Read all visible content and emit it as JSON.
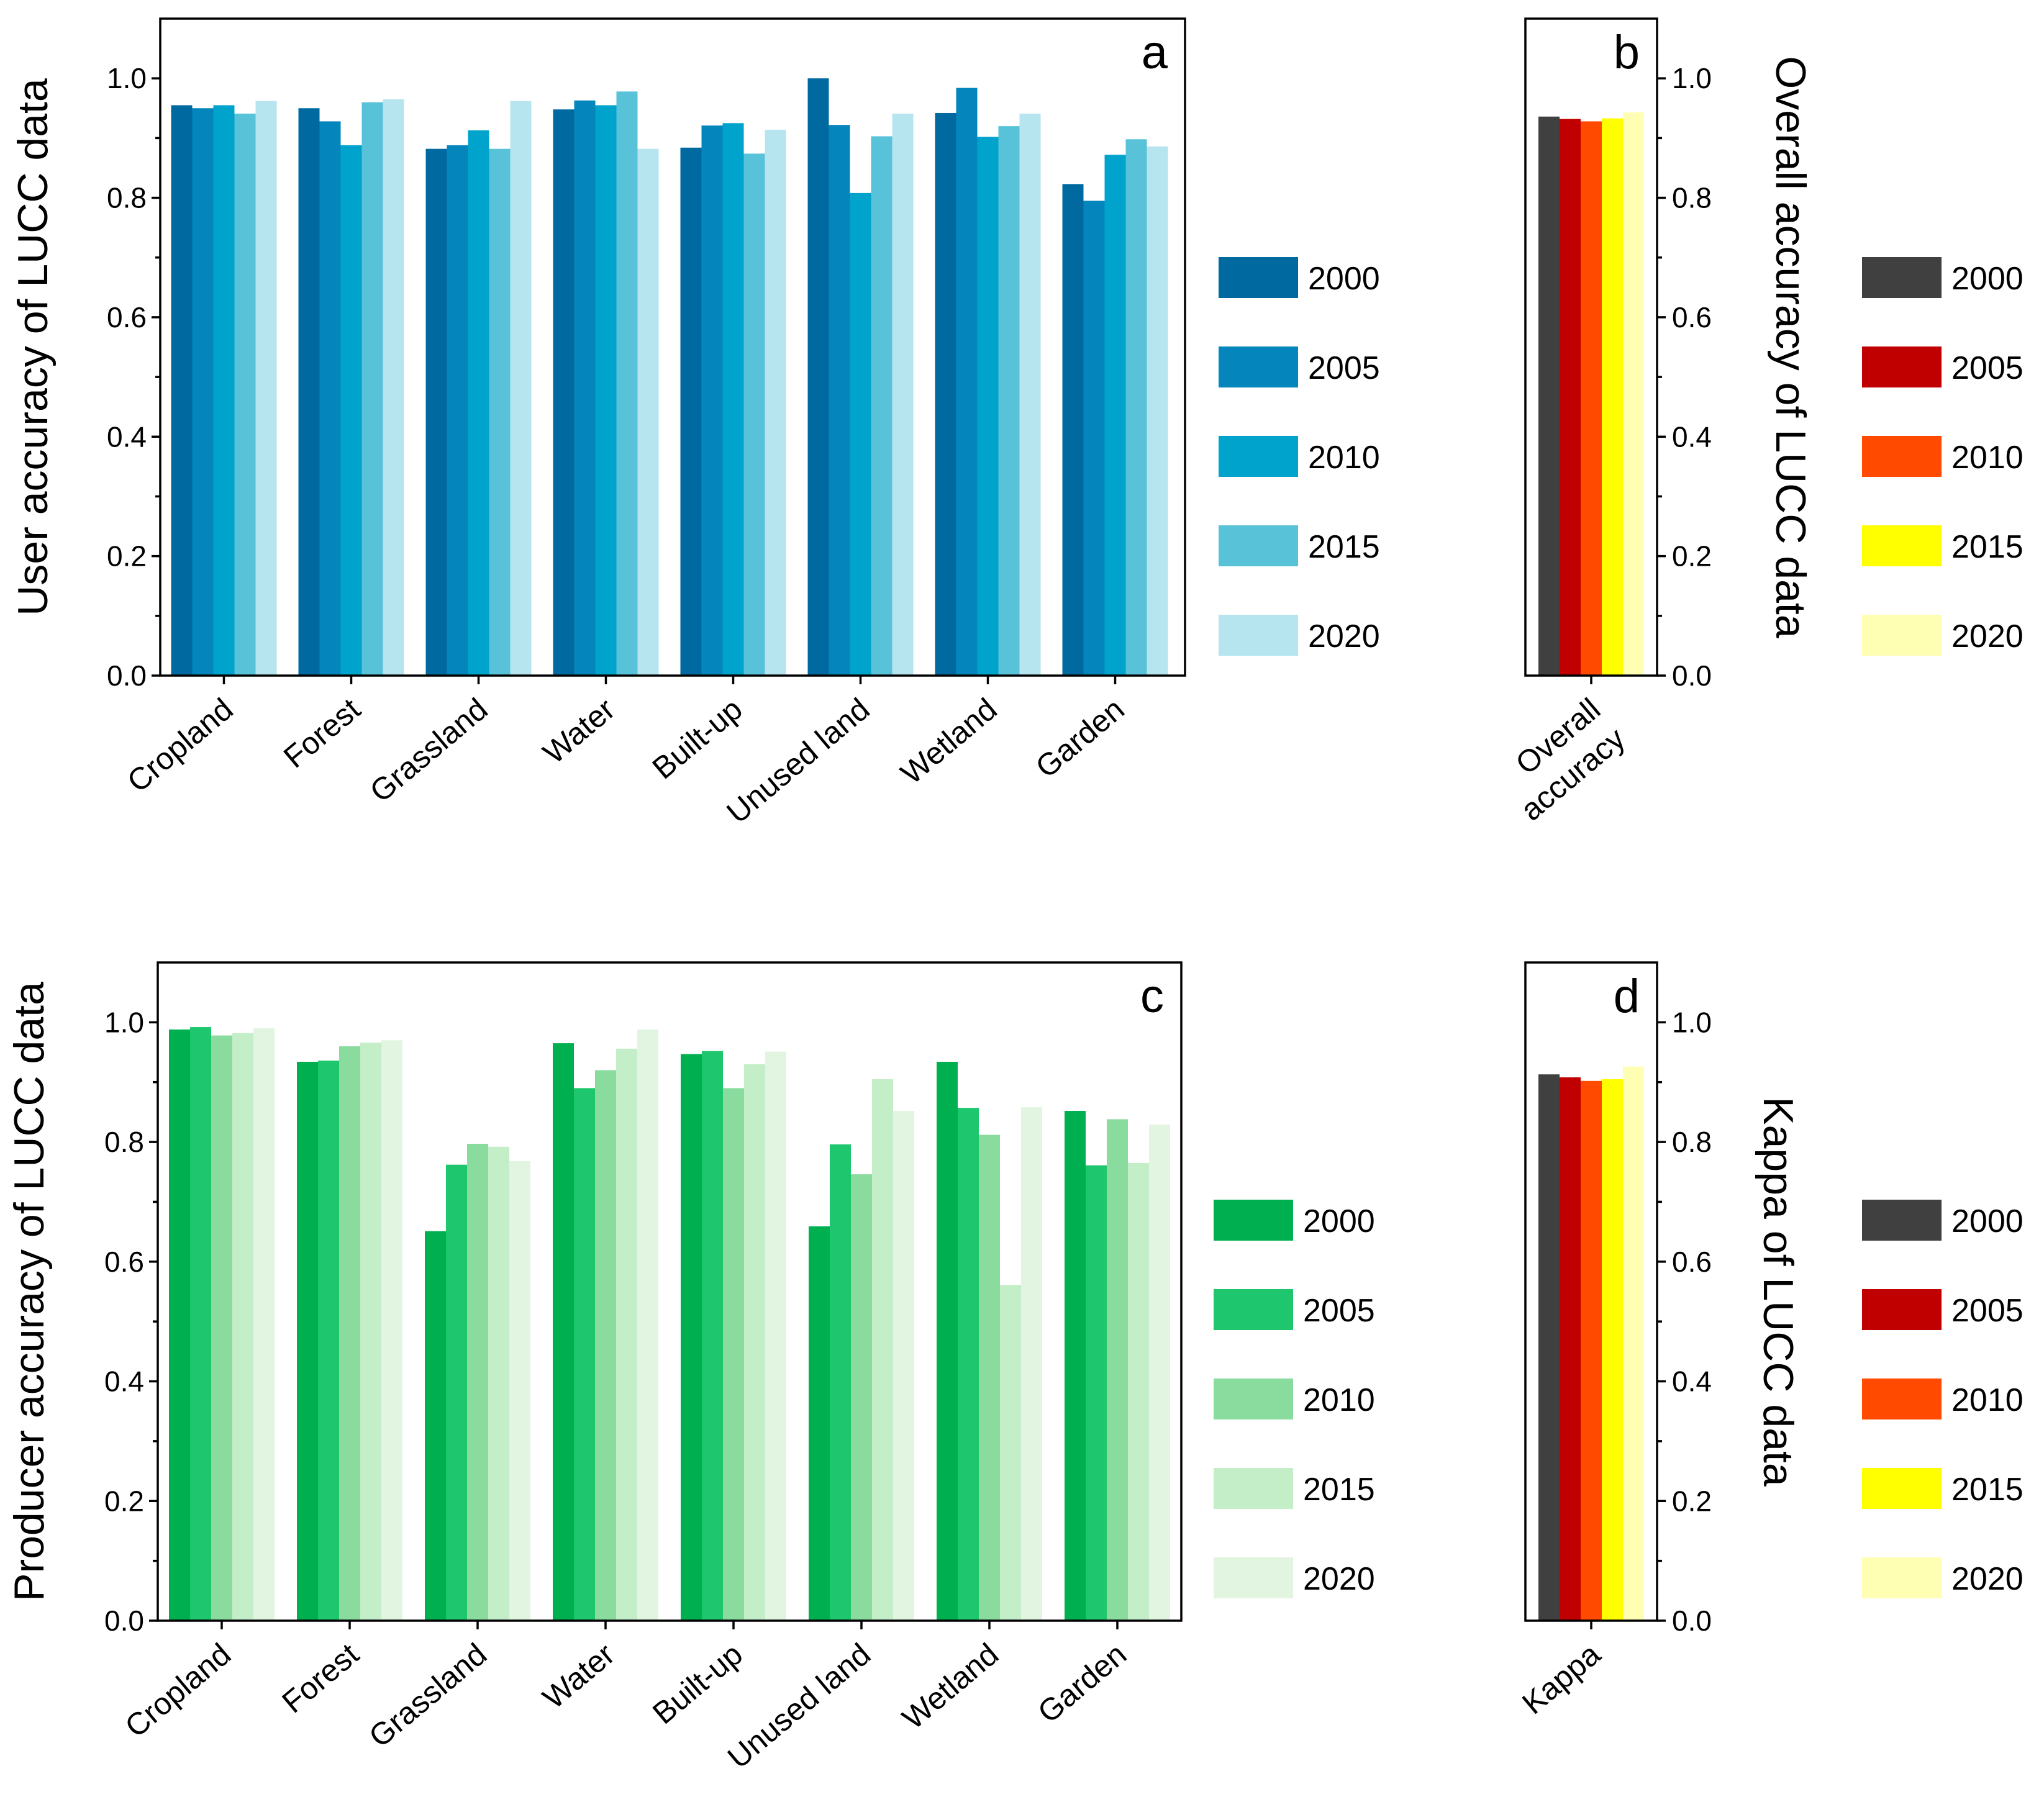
{
  "chart_data": [
    {
      "id": "a",
      "type": "bar",
      "panel_label": "a",
      "ylabel": "User accuracy of LUCC data",
      "ylim": [
        0,
        1.1
      ],
      "yticks": [
        "0.0",
        "0.2",
        "0.4",
        "0.6",
        "0.8",
        "1.0"
      ],
      "y_axis_side": "left",
      "grid": false,
      "legend_position": "right",
      "categories": [
        "Cropland",
        "Forest",
        "Grassland",
        "Water",
        "Built-up",
        "Unused land",
        "Wetland",
        "Garden"
      ],
      "series": [
        {
          "name": "2000",
          "color": "#006aa0",
          "values": [
            0.955,
            0.95,
            0.882,
            0.948,
            0.884,
            1.0,
            0.942,
            0.823
          ]
        },
        {
          "name": "2005",
          "color": "#0486bc",
          "values": [
            0.95,
            0.928,
            0.888,
            0.963,
            0.921,
            0.922,
            0.984,
            0.795
          ]
        },
        {
          "name": "2010",
          "color": "#00a3cc",
          "values": [
            0.955,
            0.888,
            0.913,
            0.955,
            0.925,
            0.808,
            0.902,
            0.872
          ]
        },
        {
          "name": "2015",
          "color": "#58c2d8",
          "values": [
            0.941,
            0.96,
            0.882,
            0.978,
            0.874,
            0.903,
            0.92,
            0.898
          ]
        },
        {
          "name": "2020",
          "color": "#b6e5ef",
          "values": [
            0.962,
            0.965,
            0.962,
            0.882,
            0.914,
            0.941,
            0.941,
            0.886
          ]
        }
      ]
    },
    {
      "id": "b",
      "type": "bar",
      "panel_label": "b",
      "ylabel": "Overall accuracy of LUCC data",
      "ylim": [
        0,
        1.1
      ],
      "yticks": [
        "0.0",
        "0.2",
        "0.4",
        "0.6",
        "0.8",
        "1.0"
      ],
      "y_axis_side": "right",
      "grid": false,
      "legend_position": "right",
      "categories": [
        "Overall accuracy"
      ],
      "category_label_lines": [
        [
          "Overall",
          "accuracy"
        ]
      ],
      "series": [
        {
          "name": "2000",
          "color": "#404040",
          "values": [
            0.936
          ]
        },
        {
          "name": "2005",
          "color": "#c00000",
          "values": [
            0.932
          ]
        },
        {
          "name": "2010",
          "color": "#ff4a00",
          "values": [
            0.928
          ]
        },
        {
          "name": "2015",
          "color": "#ffff00",
          "values": [
            0.933
          ]
        },
        {
          "name": "2020",
          "color": "#ffffb4",
          "values": [
            0.943
          ]
        }
      ]
    },
    {
      "id": "c",
      "type": "bar",
      "panel_label": "c",
      "ylabel": "Producer accuracy of LUCC data",
      "ylim": [
        0,
        1.1
      ],
      "yticks": [
        "0.0",
        "0.2",
        "0.4",
        "0.6",
        "0.8",
        "1.0"
      ],
      "y_axis_side": "left",
      "grid": false,
      "legend_position": "right",
      "categories": [
        "Cropland",
        "Forest",
        "Grassland",
        "Water",
        "Built-up",
        "Unused land",
        "Wetland",
        "Garden"
      ],
      "series": [
        {
          "name": "2000",
          "color": "#00b050",
          "values": [
            0.988,
            0.934,
            0.651,
            0.965,
            0.947,
            0.659,
            0.934,
            0.852
          ]
        },
        {
          "name": "2005",
          "color": "#1ec66e",
          "values": [
            0.992,
            0.936,
            0.762,
            0.89,
            0.952,
            0.796,
            0.857,
            0.761
          ]
        },
        {
          "name": "2010",
          "color": "#8adc9e",
          "values": [
            0.978,
            0.96,
            0.797,
            0.92,
            0.89,
            0.746,
            0.812,
            0.838
          ]
        },
        {
          "name": "2015",
          "color": "#c4eec8",
          "values": [
            0.982,
            0.966,
            0.792,
            0.956,
            0.93,
            0.905,
            0.561,
            0.765
          ]
        },
        {
          "name": "2020",
          "color": "#e2f5e0",
          "values": [
            0.99,
            0.97,
            0.768,
            0.988,
            0.951,
            0.852,
            0.858,
            0.829
          ]
        }
      ]
    },
    {
      "id": "d",
      "type": "bar",
      "panel_label": "d",
      "ylabel": "Kappa of LUCC data",
      "ylim": [
        0,
        1.1
      ],
      "yticks": [
        "0.0",
        "0.2",
        "0.4",
        "0.6",
        "0.8",
        "1.0"
      ],
      "y_axis_side": "right",
      "grid": false,
      "legend_position": "right",
      "categories": [
        "Kappa"
      ],
      "category_label_lines": [
        [
          "Kappa"
        ]
      ],
      "series": [
        {
          "name": "2000",
          "color": "#404040",
          "values": [
            0.913
          ]
        },
        {
          "name": "2005",
          "color": "#c00000",
          "values": [
            0.908
          ]
        },
        {
          "name": "2010",
          "color": "#ff4a00",
          "values": [
            0.902
          ]
        },
        {
          "name": "2015",
          "color": "#ffff00",
          "values": [
            0.905
          ]
        },
        {
          "name": "2020",
          "color": "#ffffb4",
          "values": [
            0.926
          ]
        }
      ]
    }
  ]
}
